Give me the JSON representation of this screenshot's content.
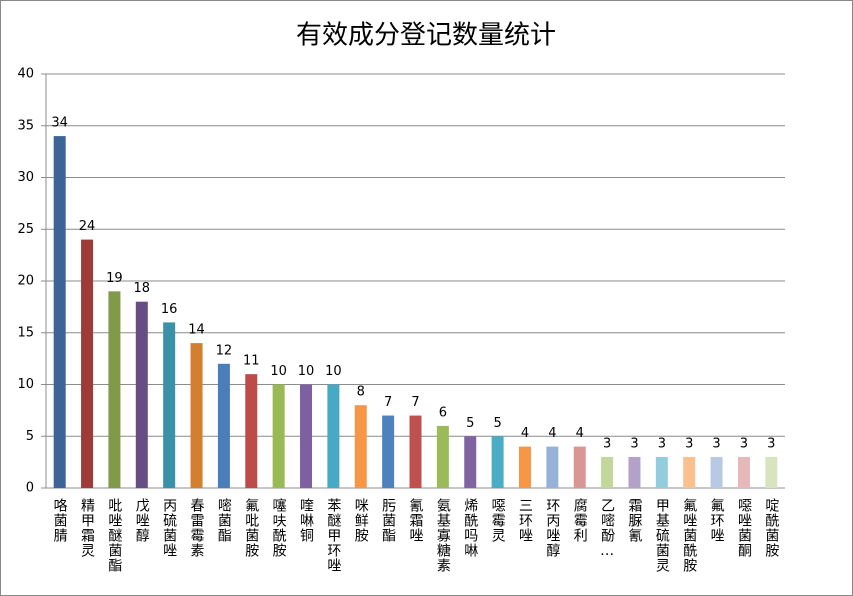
{
  "chart_data": {
    "type": "bar",
    "title": "有效成分登记数量统计",
    "categories": [
      "咯菌腈",
      "精甲霜灵",
      "吡唑醚菌酯",
      "戊唑醇",
      "丙硫菌唑",
      "春雷霉素",
      "嘧菌酯",
      "氟吡菌胺",
      "噻呋酰胺",
      "喹啉铜",
      "苯醚甲环唑",
      "咪鲜胺",
      "肟菌酯",
      "氰霜唑",
      "氨基寡糖素",
      "烯酰吗啉",
      "噁霉灵",
      "三环唑",
      "环丙唑醇",
      "腐霉利",
      "乙嘧酚…",
      "霜脲氰",
      "甲基硫菌灵",
      "氟唑菌酰胺",
      "氟环唑",
      "噁唑菌酮",
      "啶酰菌胺"
    ],
    "values": [
      34,
      24,
      19,
      18,
      16,
      14,
      12,
      11,
      10,
      10,
      10,
      8,
      7,
      7,
      6,
      5,
      5,
      4,
      4,
      4,
      3,
      3,
      3,
      3,
      3,
      3,
      3
    ],
    "colors": [
      "#3c6496",
      "#9e3b39",
      "#7f9a48",
      "#664e85",
      "#3a91a8",
      "#d27f30",
      "#4a7ebb",
      "#be4b48",
      "#98b954",
      "#7d60a0",
      "#46aac5",
      "#f79646",
      "#4f81bd",
      "#c0504d",
      "#9bbb59",
      "#8064a2",
      "#4bacc6",
      "#f79646",
      "#95b3d7",
      "#d99694",
      "#c3d69b",
      "#b3a2c7",
      "#93cddd",
      "#fac090",
      "#b9c9e3",
      "#e6b9b8",
      "#d7e4bd"
    ],
    "ylim": [
      0,
      40
    ],
    "yticks": [
      0,
      5,
      10,
      15,
      20,
      25,
      30,
      35,
      40
    ],
    "grid": true
  }
}
